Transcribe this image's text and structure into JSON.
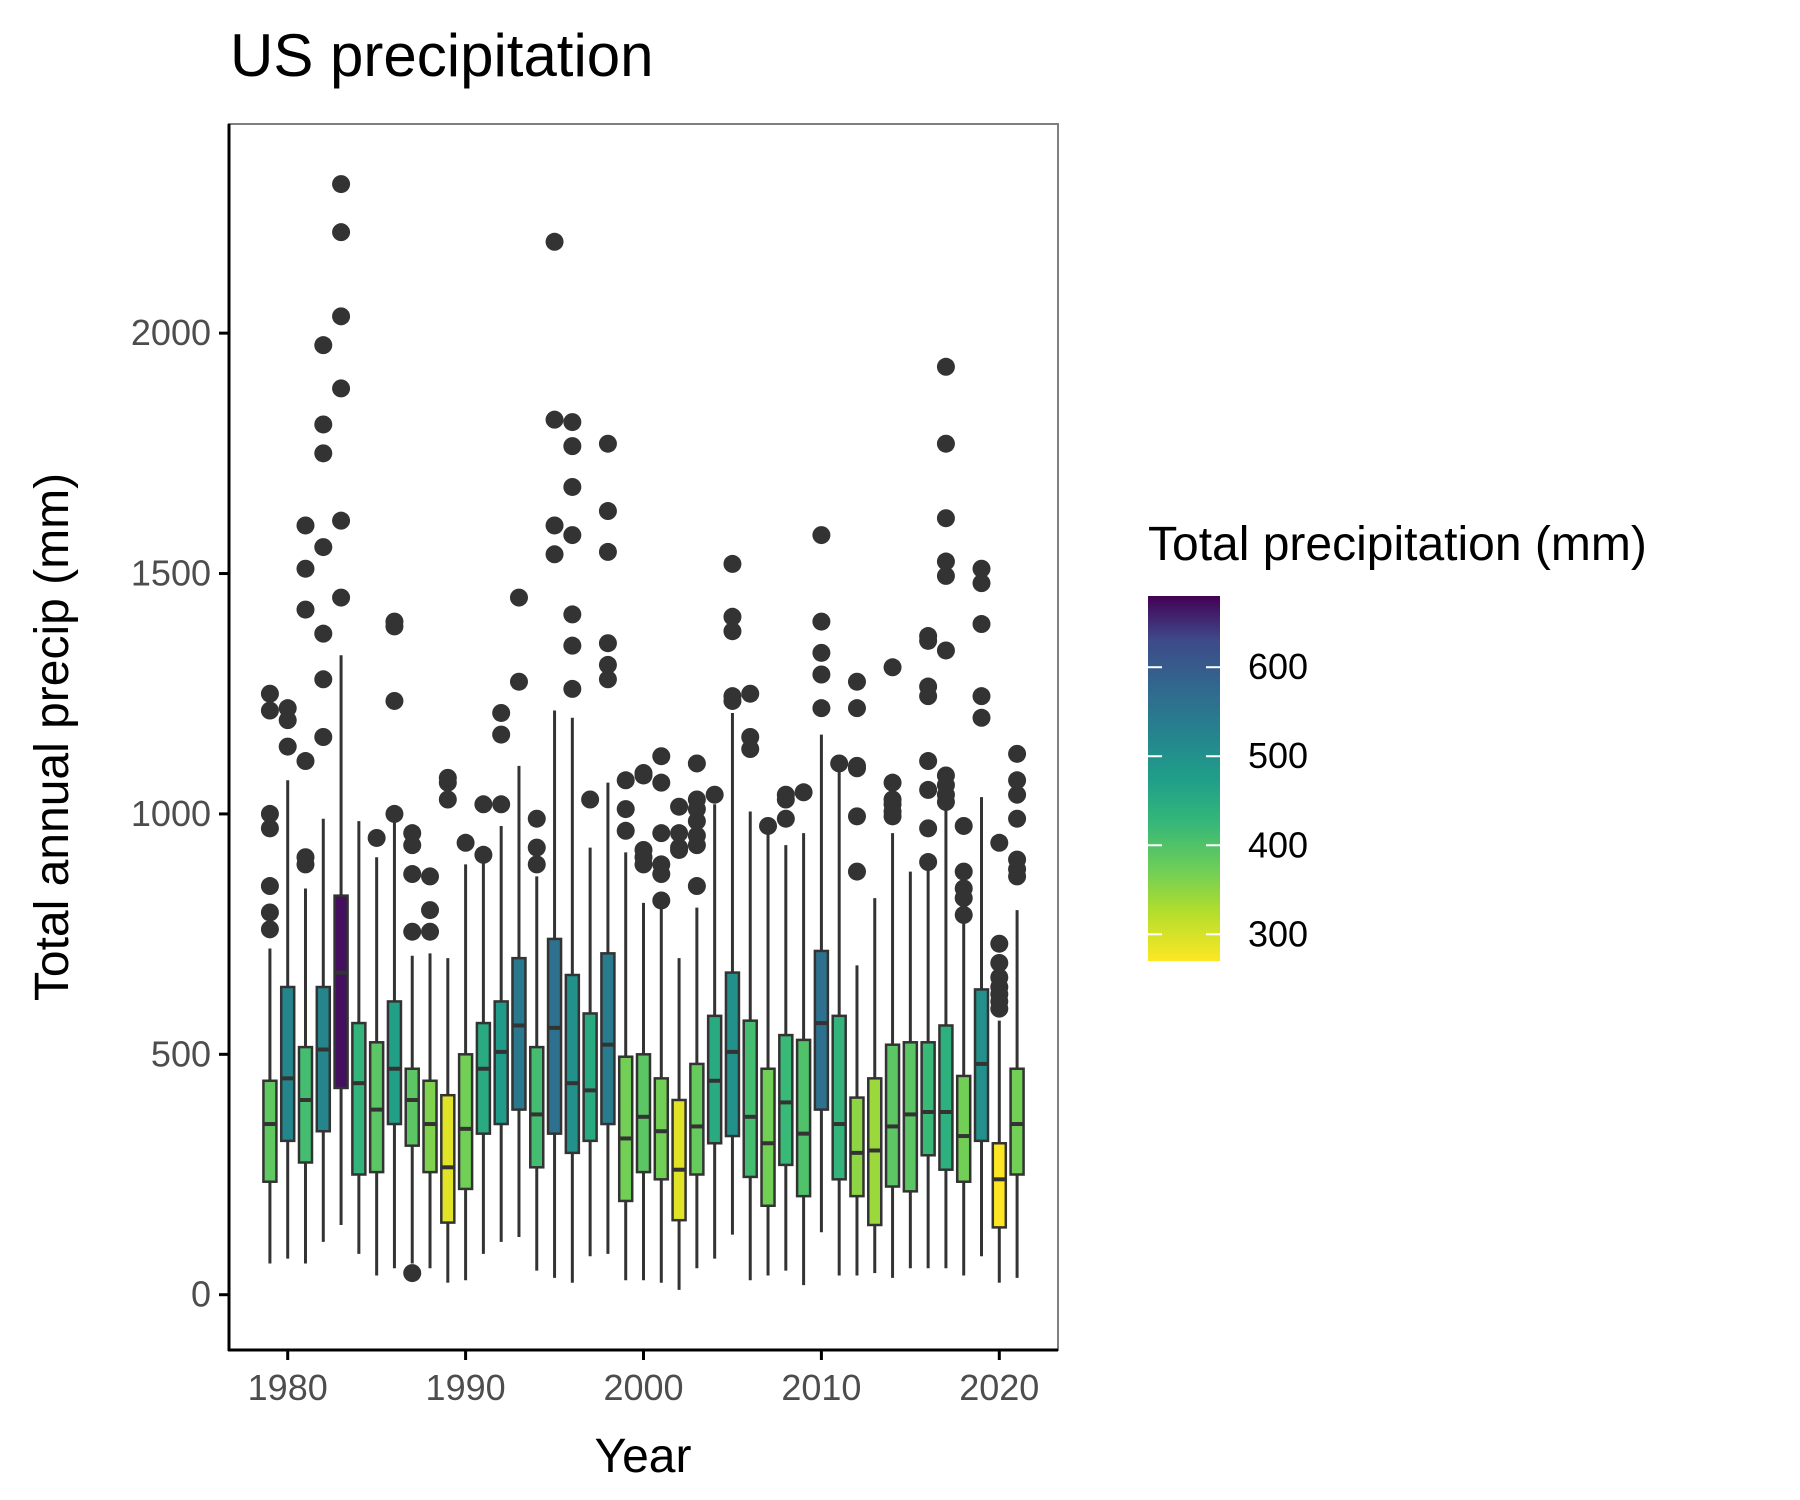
{
  "chart_data": {
    "type": "boxplot",
    "title": "US precipitation",
    "xlabel": "Year",
    "ylabel": "Total annual precip (mm)",
    "xlim": [
      1976.7,
      2023.3
    ],
    "ylim": [
      -115,
      2435
    ],
    "x_ticks": [
      1980,
      1990,
      2000,
      2010,
      2020
    ],
    "y_ticks": [
      0,
      500,
      1000,
      1500,
      2000
    ],
    "legend": {
      "title": "Total precipitation (mm)",
      "placement": "right",
      "range": [
        270,
        680
      ],
      "ticks": [
        300,
        400,
        500,
        600
      ]
    },
    "fill_by": "mean",
    "series": [
      {
        "year": 1979,
        "min": 65,
        "q1": 235,
        "median": 355,
        "q3": 445,
        "max": 720,
        "mean": 385,
        "outliers": [
          760,
          795,
          850,
          970,
          1000,
          1215,
          1250
        ]
      },
      {
        "year": 1980,
        "min": 75,
        "q1": 320,
        "median": 450,
        "q3": 640,
        "max": 1070,
        "mean": 520,
        "outliers": [
          1140,
          1195,
          1220
        ]
      },
      {
        "year": 1981,
        "min": 65,
        "q1": 275,
        "median": 405,
        "q3": 515,
        "max": 845,
        "mean": 410,
        "outliers": [
          895,
          910,
          1110,
          1425,
          1510,
          1600
        ]
      },
      {
        "year": 1982,
        "min": 110,
        "q1": 340,
        "median": 510,
        "q3": 640,
        "max": 990,
        "mean": 520,
        "outliers": [
          1160,
          1280,
          1375,
          1555,
          1750,
          1810,
          1975
        ]
      },
      {
        "year": 1983,
        "min": 145,
        "q1": 430,
        "median": 670,
        "q3": 830,
        "max": 1330,
        "mean": 670,
        "outliers": [
          1450,
          1610,
          1885,
          2035,
          2210,
          2310
        ]
      },
      {
        "year": 1984,
        "min": 85,
        "q1": 250,
        "median": 440,
        "q3": 565,
        "max": 985,
        "mean": 430,
        "outliers": []
      },
      {
        "year": 1985,
        "min": 40,
        "q1": 255,
        "median": 385,
        "q3": 525,
        "max": 910,
        "mean": 390,
        "outliers": [
          950
        ]
      },
      {
        "year": 1986,
        "min": 55,
        "q1": 355,
        "median": 470,
        "q3": 610,
        "max": 985,
        "mean": 470,
        "outliers": [
          1000,
          1235,
          1390,
          1400
        ]
      },
      {
        "year": 1987,
        "min": 65,
        "q1": 310,
        "median": 405,
        "q3": 470,
        "max": 705,
        "mean": 390,
        "outliers": [
          45,
          755,
          875,
          935,
          960
        ]
      },
      {
        "year": 1988,
        "min": 55,
        "q1": 255,
        "median": 355,
        "q3": 445,
        "max": 710,
        "mean": 360,
        "outliers": [
          755,
          800,
          870
        ]
      },
      {
        "year": 1989,
        "min": 25,
        "q1": 150,
        "median": 265,
        "q3": 415,
        "max": 700,
        "mean": 290,
        "outliers": [
          1030,
          1065,
          1075
        ]
      },
      {
        "year": 1990,
        "min": 30,
        "q1": 220,
        "median": 345,
        "q3": 500,
        "max": 895,
        "mean": 370,
        "outliers": [
          940
        ]
      },
      {
        "year": 1991,
        "min": 85,
        "q1": 335,
        "median": 470,
        "q3": 565,
        "max": 900,
        "mean": 450,
        "outliers": [
          915,
          1020
        ]
      },
      {
        "year": 1992,
        "min": 110,
        "q1": 355,
        "median": 505,
        "q3": 610,
        "max": 975,
        "mean": 480,
        "outliers": [
          1020,
          1165,
          1210
        ]
      },
      {
        "year": 1993,
        "min": 120,
        "q1": 385,
        "median": 560,
        "q3": 700,
        "max": 1100,
        "mean": 545,
        "outliers": [
          1275,
          1450
        ]
      },
      {
        "year": 1994,
        "min": 50,
        "q1": 265,
        "median": 375,
        "q3": 515,
        "max": 870,
        "mean": 410,
        "outliers": [
          895,
          930,
          990
        ]
      },
      {
        "year": 1995,
        "min": 35,
        "q1": 335,
        "median": 555,
        "q3": 740,
        "max": 1215,
        "mean": 560,
        "outliers": [
          1540,
          1600,
          1820,
          2190
        ]
      },
      {
        "year": 1996,
        "min": 25,
        "q1": 295,
        "median": 440,
        "q3": 665,
        "max": 1200,
        "mean": 500,
        "outliers": [
          1260,
          1350,
          1415,
          1580,
          1680,
          1765,
          1815
        ]
      },
      {
        "year": 1997,
        "min": 80,
        "q1": 320,
        "median": 425,
        "q3": 585,
        "max": 930,
        "mean": 450,
        "outliers": [
          1030
        ]
      },
      {
        "year": 1998,
        "min": 85,
        "q1": 355,
        "median": 520,
        "q3": 710,
        "max": 1065,
        "mean": 540,
        "outliers": [
          1280,
          1310,
          1355,
          1545,
          1630,
          1770
        ]
      },
      {
        "year": 1999,
        "min": 30,
        "q1": 195,
        "median": 325,
        "q3": 495,
        "max": 920,
        "mean": 370,
        "outliers": [
          965,
          1010,
          1070
        ]
      },
      {
        "year": 2000,
        "min": 30,
        "q1": 255,
        "median": 370,
        "q3": 500,
        "max": 815,
        "mean": 390,
        "outliers": [
          895,
          910,
          925,
          1080,
          1085
        ]
      },
      {
        "year": 2001,
        "min": 25,
        "q1": 240,
        "median": 340,
        "q3": 450,
        "max": 830,
        "mean": 370,
        "outliers": [
          820,
          875,
          895,
          960,
          1065,
          1120
        ]
      },
      {
        "year": 2002,
        "min": 10,
        "q1": 155,
        "median": 260,
        "q3": 405,
        "max": 700,
        "mean": 290,
        "outliers": [
          925,
          930,
          960,
          1015
        ]
      },
      {
        "year": 2003,
        "min": 55,
        "q1": 250,
        "median": 350,
        "q3": 480,
        "max": 805,
        "mean": 380,
        "outliers": [
          850,
          935,
          955,
          985,
          1010,
          1030,
          1105
        ]
      },
      {
        "year": 2004,
        "min": 75,
        "q1": 315,
        "median": 445,
        "q3": 580,
        "max": 1020,
        "mean": 450,
        "outliers": [
          1040
        ]
      },
      {
        "year": 2005,
        "min": 125,
        "q1": 330,
        "median": 505,
        "q3": 670,
        "max": 1210,
        "mean": 500,
        "outliers": [
          1235,
          1245,
          1380,
          1410,
          1520
        ]
      },
      {
        "year": 2006,
        "min": 30,
        "q1": 245,
        "median": 370,
        "q3": 570,
        "max": 1005,
        "mean": 410,
        "outliers": [
          1135,
          1160,
          1250
        ]
      },
      {
        "year": 2007,
        "min": 40,
        "q1": 185,
        "median": 315,
        "q3": 470,
        "max": 960,
        "mean": 370,
        "outliers": [
          975
        ]
      },
      {
        "year": 2008,
        "min": 50,
        "q1": 270,
        "median": 400,
        "q3": 540,
        "max": 935,
        "mean": 420,
        "outliers": [
          990,
          1030,
          1040
        ]
      },
      {
        "year": 2009,
        "min": 20,
        "q1": 205,
        "median": 335,
        "q3": 530,
        "max": 960,
        "mean": 400,
        "outliers": [
          1045
        ]
      },
      {
        "year": 2010,
        "min": 130,
        "q1": 385,
        "median": 565,
        "q3": 715,
        "max": 1165,
        "mean": 560,
        "outliers": [
          1220,
          1290,
          1335,
          1400,
          1580
        ]
      },
      {
        "year": 2011,
        "min": 40,
        "q1": 240,
        "median": 355,
        "q3": 580,
        "max": 1090,
        "mean": 430,
        "outliers": [
          1105
        ]
      },
      {
        "year": 2012,
        "min": 40,
        "q1": 205,
        "median": 295,
        "q3": 410,
        "max": 685,
        "mean": 350,
        "outliers": [
          880,
          995,
          1095,
          1100,
          1220,
          1275
        ]
      },
      {
        "year": 2013,
        "min": 45,
        "q1": 145,
        "median": 300,
        "q3": 450,
        "max": 825,
        "mean": 340,
        "outliers": []
      },
      {
        "year": 2014,
        "min": 35,
        "q1": 225,
        "median": 350,
        "q3": 520,
        "max": 960,
        "mean": 390,
        "outliers": [
          995,
          1005,
          1020,
          1030,
          1065,
          1305
        ]
      },
      {
        "year": 2015,
        "min": 55,
        "q1": 215,
        "median": 375,
        "q3": 525,
        "max": 880,
        "mean": 390,
        "outliers": []
      },
      {
        "year": 2016,
        "min": 55,
        "q1": 290,
        "median": 380,
        "q3": 525,
        "max": 890,
        "mean": 420,
        "outliers": [
          900,
          970,
          1050,
          1110,
          1245,
          1265,
          1360,
          1370
        ]
      },
      {
        "year": 2017,
        "min": 55,
        "q1": 260,
        "median": 380,
        "q3": 560,
        "max": 1025,
        "mean": 440,
        "outliers": [
          1025,
          1040,
          1060,
          1080,
          1340,
          1495,
          1525,
          1615,
          1770,
          1930
        ]
      },
      {
        "year": 2018,
        "min": 40,
        "q1": 235,
        "median": 330,
        "q3": 455,
        "max": 790,
        "mean": 370,
        "outliers": [
          790,
          825,
          845,
          880,
          975
        ]
      },
      {
        "year": 2019,
        "min": 80,
        "q1": 320,
        "median": 480,
        "q3": 635,
        "max": 1035,
        "mean": 500,
        "outliers": [
          1200,
          1245,
          1395,
          1480,
          1510
        ]
      },
      {
        "year": 2020,
        "min": 25,
        "q1": 140,
        "median": 240,
        "q3": 315,
        "max": 570,
        "mean": 270,
        "outliers": [
          595,
          610,
          625,
          640,
          660,
          690,
          730,
          940
        ]
      },
      {
        "year": 2021,
        "min": 35,
        "q1": 250,
        "median": 355,
        "q3": 470,
        "max": 800,
        "mean": 370,
        "outliers": [
          870,
          885,
          905,
          990,
          1040,
          1070,
          1125
        ]
      }
    ]
  }
}
